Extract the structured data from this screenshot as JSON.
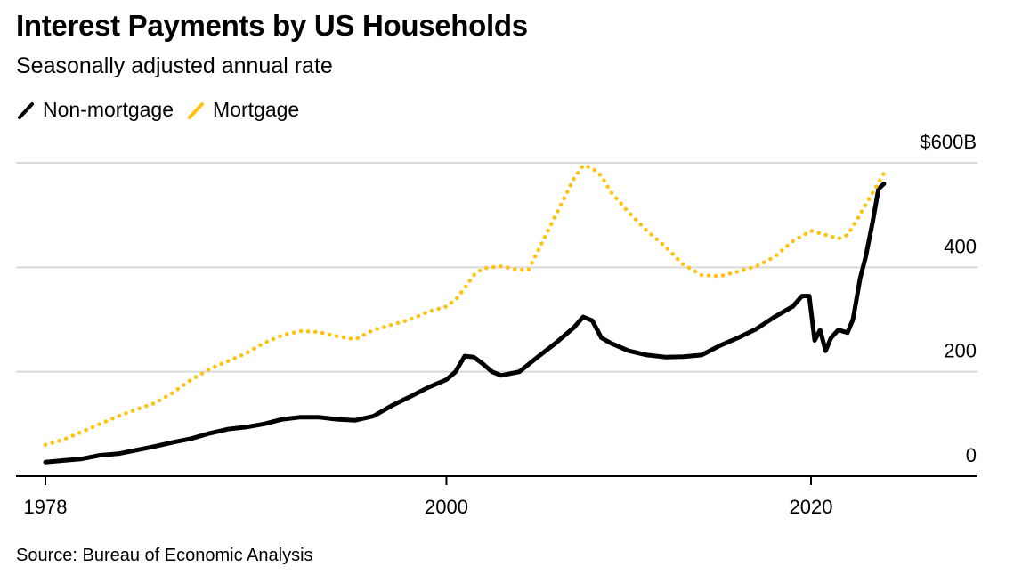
{
  "title": "Interest Payments by US Households",
  "subtitle": "Seasonally adjusted annual rate",
  "source": "Source: Bureau of Economic Analysis",
  "colors": {
    "non_mortgage": "#000000",
    "mortgage": "#FFC20E",
    "grid": "#d9d9d9",
    "axis": "#000000"
  },
  "chart_data": {
    "type": "line",
    "title": "Interest Payments by US Households",
    "subtitle": "Seasonally adjusted annual rate",
    "xlabel": "",
    "ylabel": "",
    "unit": "billions of dollars",
    "xlim": [
      1978,
      2027
    ],
    "ylim": [
      0,
      600
    ],
    "x_ticks": [
      {
        "value": 1978,
        "label": "1978"
      },
      {
        "value": 2000,
        "label": "2000"
      },
      {
        "value": 2020,
        "label": "2020"
      }
    ],
    "y_ticks": [
      {
        "value": 0,
        "label": "0"
      },
      {
        "value": 200,
        "label": "200"
      },
      {
        "value": 400,
        "label": "400"
      },
      {
        "value": 600,
        "label": "$600B"
      }
    ],
    "legend": "top-left",
    "series": [
      {
        "name": "Non-mortgage",
        "style": "solid",
        "points": [
          [
            1978,
            27
          ],
          [
            1979,
            30
          ],
          [
            1980,
            33
          ],
          [
            1981,
            40
          ],
          [
            1982,
            43
          ],
          [
            1983,
            50
          ],
          [
            1984,
            57
          ],
          [
            1985,
            65
          ],
          [
            1986,
            72
          ],
          [
            1987,
            82
          ],
          [
            1988,
            90
          ],
          [
            1989,
            94
          ],
          [
            1990,
            100
          ],
          [
            1991,
            109
          ],
          [
            1992,
            113
          ],
          [
            1993,
            113
          ],
          [
            1994,
            109
          ],
          [
            1995,
            107
          ],
          [
            1996,
            115
          ],
          [
            1997,
            135
          ],
          [
            1998,
            152
          ],
          [
            1999,
            170
          ],
          [
            2000,
            185
          ],
          [
            2000.5,
            200
          ],
          [
            2001,
            230
          ],
          [
            2001.5,
            228
          ],
          [
            2002,
            215
          ],
          [
            2002.5,
            200
          ],
          [
            2003,
            193
          ],
          [
            2004,
            200
          ],
          [
            2005,
            228
          ],
          [
            2006,
            255
          ],
          [
            2007,
            285
          ],
          [
            2007.5,
            305
          ],
          [
            2008,
            298
          ],
          [
            2008.5,
            265
          ],
          [
            2009,
            255
          ],
          [
            2010,
            240
          ],
          [
            2011,
            232
          ],
          [
            2012,
            228
          ],
          [
            2013,
            229
          ],
          [
            2014,
            232
          ],
          [
            2015,
            250
          ],
          [
            2016,
            265
          ],
          [
            2017,
            282
          ],
          [
            2018,
            305
          ],
          [
            2019,
            325
          ],
          [
            2019.5,
            345
          ],
          [
            2019.9,
            345
          ],
          [
            2020.2,
            260
          ],
          [
            2020.5,
            280
          ],
          [
            2020.8,
            240
          ],
          [
            2021.1,
            265
          ],
          [
            2021.5,
            280
          ],
          [
            2022,
            275
          ],
          [
            2022.3,
            300
          ],
          [
            2022.7,
            380
          ],
          [
            2023,
            420
          ],
          [
            2023.4,
            490
          ],
          [
            2023.7,
            550
          ],
          [
            2024,
            560
          ]
        ]
      },
      {
        "name": "Mortgage",
        "style": "dotted",
        "points": [
          [
            1978,
            60
          ],
          [
            1979,
            70
          ],
          [
            1980,
            85
          ],
          [
            1981,
            100
          ],
          [
            1982,
            115
          ],
          [
            1983,
            128
          ],
          [
            1984,
            140
          ],
          [
            1985,
            160
          ],
          [
            1986,
            185
          ],
          [
            1987,
            205
          ],
          [
            1988,
            220
          ],
          [
            1989,
            235
          ],
          [
            1990,
            255
          ],
          [
            1991,
            270
          ],
          [
            1992,
            278
          ],
          [
            1993,
            276
          ],
          [
            1994,
            268
          ],
          [
            1995,
            262
          ],
          [
            1996,
            280
          ],
          [
            1997,
            290
          ],
          [
            1998,
            300
          ],
          [
            1999,
            315
          ],
          [
            2000,
            325
          ],
          [
            2000.5,
            338
          ],
          [
            2001,
            360
          ],
          [
            2001.5,
            385
          ],
          [
            2002,
            398
          ],
          [
            2003,
            402
          ],
          [
            2004,
            395
          ],
          [
            2004.5,
            395
          ],
          [
            2005,
            430
          ],
          [
            2006,
            500
          ],
          [
            2007,
            570
          ],
          [
            2007.5,
            595
          ],
          [
            2008,
            590
          ],
          [
            2008.5,
            575
          ],
          [
            2009,
            545
          ],
          [
            2010,
            505
          ],
          [
            2011,
            470
          ],
          [
            2012,
            440
          ],
          [
            2013,
            405
          ],
          [
            2014,
            385
          ],
          [
            2015,
            383
          ],
          [
            2016,
            392
          ],
          [
            2017,
            402
          ],
          [
            2018,
            420
          ],
          [
            2019,
            450
          ],
          [
            2020,
            470
          ],
          [
            2020.5,
            465
          ],
          [
            2021,
            460
          ],
          [
            2021.5,
            455
          ],
          [
            2022,
            462
          ],
          [
            2022.5,
            490
          ],
          [
            2023,
            520
          ],
          [
            2023.5,
            550
          ],
          [
            2024,
            580
          ]
        ]
      }
    ]
  }
}
